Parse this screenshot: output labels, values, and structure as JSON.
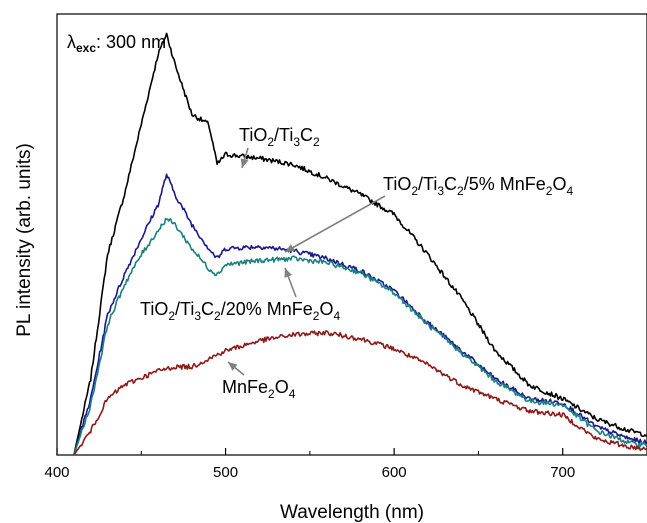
{
  "chart_data": {
    "type": "line",
    "xlabel": "Wavelength (nm)",
    "ylabel": "PL intensity (arb. units)",
    "xlim": [
      400,
      750
    ],
    "x_ticks": [
      "400",
      "500",
      "600",
      "700"
    ],
    "y_ticks_labeled": false,
    "grid": false,
    "legend": "none",
    "excitation_label": {
      "lambda": "λ",
      "sub": "exc",
      "text": ": 300 nm"
    },
    "series": [
      {
        "name": "TiO2/Ti3C2",
        "color": "#000000",
        "points": [
          [
            410,
            0
          ],
          [
            420,
            38
          ],
          [
            430,
            100
          ],
          [
            440,
            130
          ],
          [
            450,
            165
          ],
          [
            460,
            200
          ],
          [
            465,
            210
          ],
          [
            470,
            195
          ],
          [
            480,
            170
          ],
          [
            490,
            165
          ],
          [
            495,
            145
          ],
          [
            500,
            150
          ],
          [
            520,
            148
          ],
          [
            540,
            145
          ],
          [
            560,
            138
          ],
          [
            580,
            130
          ],
          [
            600,
            120
          ],
          [
            620,
            100
          ],
          [
            640,
            78
          ],
          [
            660,
            52
          ],
          [
            680,
            35
          ],
          [
            700,
            28
          ],
          [
            720,
            18
          ],
          [
            740,
            12
          ],
          [
            750,
            10
          ]
        ]
      },
      {
        "name": "TiO2/Ti3C2/5% MnFe2O4",
        "color": "#1a1a8c",
        "points": [
          [
            410,
            0
          ],
          [
            420,
            28
          ],
          [
            430,
            70
          ],
          [
            440,
            90
          ],
          [
            450,
            108
          ],
          [
            460,
            125
          ],
          [
            465,
            140
          ],
          [
            470,
            130
          ],
          [
            480,
            115
          ],
          [
            490,
            103
          ],
          [
            495,
            98
          ],
          [
            500,
            103
          ],
          [
            520,
            104
          ],
          [
            540,
            102
          ],
          [
            560,
            98
          ],
          [
            580,
            92
          ],
          [
            600,
            82
          ],
          [
            620,
            66
          ],
          [
            640,
            52
          ],
          [
            660,
            38
          ],
          [
            680,
            28
          ],
          [
            700,
            26
          ],
          [
            720,
            14
          ],
          [
            740,
            8
          ],
          [
            750,
            6
          ]
        ]
      },
      {
        "name": "TiO2/Ti3C2/20% MnFe2O4",
        "color": "#1a8080",
        "points": [
          [
            410,
            0
          ],
          [
            420,
            25
          ],
          [
            430,
            65
          ],
          [
            440,
            85
          ],
          [
            450,
            100
          ],
          [
            460,
            112
          ],
          [
            465,
            118
          ],
          [
            470,
            115
          ],
          [
            480,
            103
          ],
          [
            490,
            93
          ],
          [
            495,
            90
          ],
          [
            500,
            95
          ],
          [
            520,
            97
          ],
          [
            540,
            98
          ],
          [
            560,
            96
          ],
          [
            580,
            91
          ],
          [
            600,
            81
          ],
          [
            620,
            65
          ],
          [
            640,
            51
          ],
          [
            660,
            37
          ],
          [
            680,
            27
          ],
          [
            700,
            25
          ],
          [
            720,
            12
          ],
          [
            740,
            6
          ],
          [
            750,
            5
          ]
        ]
      },
      {
        "name": "MnFe2O4",
        "color": "#8b1a1a",
        "points": [
          [
            410,
            0
          ],
          [
            420,
            12
          ],
          [
            430,
            28
          ],
          [
            440,
            35
          ],
          [
            460,
            42
          ],
          [
            470,
            44
          ],
          [
            480,
            44
          ],
          [
            490,
            48
          ],
          [
            500,
            52
          ],
          [
            520,
            57
          ],
          [
            540,
            60
          ],
          [
            560,
            61
          ],
          [
            580,
            58
          ],
          [
            600,
            53
          ],
          [
            620,
            45
          ],
          [
            640,
            35
          ],
          [
            660,
            28
          ],
          [
            680,
            22
          ],
          [
            700,
            20
          ],
          [
            720,
            8
          ],
          [
            740,
            4
          ],
          [
            750,
            3
          ]
        ]
      }
    ],
    "ylim": [
      0,
      220
    ],
    "annotations": [
      {
        "id": "tio2-ti3c2",
        "parts": [
          [
            "TiO",
            "n"
          ],
          [
            "2",
            "sub"
          ],
          [
            "/Ti",
            "n"
          ],
          [
            "3",
            "sub"
          ],
          [
            "C",
            "n"
          ],
          [
            "2",
            "sub"
          ]
        ]
      },
      {
        "id": "five-percent",
        "parts": [
          [
            "TiO",
            "n"
          ],
          [
            "2",
            "sub"
          ],
          [
            "/Ti",
            "n"
          ],
          [
            "3",
            "sub"
          ],
          [
            "C",
            "n"
          ],
          [
            "2",
            "sub"
          ],
          [
            "/5% MnFe",
            "n"
          ],
          [
            "2",
            "sub"
          ],
          [
            "O",
            "n"
          ],
          [
            "4",
            "sub"
          ]
        ]
      },
      {
        "id": "twenty-percent",
        "parts": [
          [
            "TiO",
            "n"
          ],
          [
            "2",
            "sub"
          ],
          [
            "/Ti",
            "n"
          ],
          [
            "3",
            "sub"
          ],
          [
            "C",
            "n"
          ],
          [
            "2",
            "sub"
          ],
          [
            "/20% MnFe",
            "n"
          ],
          [
            "2",
            "sub"
          ],
          [
            "O",
            "n"
          ],
          [
            "4",
            "sub"
          ]
        ]
      },
      {
        "id": "mnfe2o4",
        "parts": [
          [
            "MnFe",
            "n"
          ],
          [
            "2",
            "sub"
          ],
          [
            "O",
            "n"
          ],
          [
            "4",
            "sub"
          ]
        ]
      }
    ]
  }
}
